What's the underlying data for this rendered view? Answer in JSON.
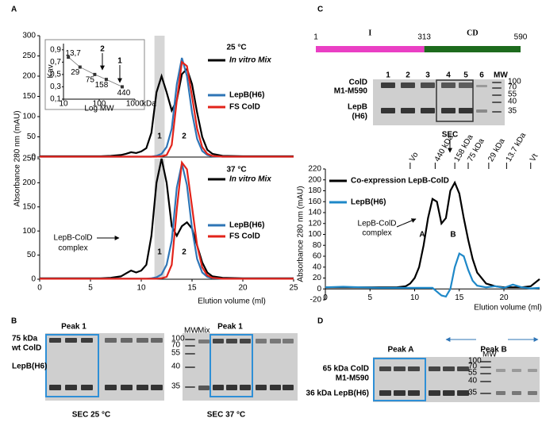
{
  "panels": [
    "A",
    "B",
    "C",
    "D"
  ],
  "chart_data": [
    {
      "type": "line",
      "y_label": "Absorbance 280 nm (mAU)",
      "xlim": [
        0,
        25
      ],
      "ylim": [
        0,
        300
      ],
      "yticks": [
        0,
        50,
        100,
        150,
        200,
        250,
        300
      ],
      "highlight": [
        11.3,
        12.3
      ],
      "annotations": [
        "25 °C",
        "1",
        "2"
      ],
      "x": [
        0,
        2,
        4,
        6,
        7,
        8,
        8.5,
        9,
        9.5,
        10,
        10.5,
        11,
        11.5,
        12,
        12.5,
        13,
        13.5,
        14,
        14.5,
        15,
        15.5,
        16,
        16.5,
        17,
        18,
        20,
        22,
        25
      ],
      "series": [
        {
          "name": "In vitro Mix",
          "color": "#000000",
          "values": [
            2,
            2,
            2,
            2,
            3,
            5,
            8,
            12,
            10,
            14,
            22,
            60,
            160,
            200,
            160,
            115,
            140,
            205,
            218,
            180,
            110,
            50,
            18,
            8,
            3,
            2,
            2,
            2
          ]
        },
        {
          "name": "LepB(H6)",
          "color": "#2e75b6",
          "values": [
            1,
            1,
            1,
            1,
            1,
            1,
            1,
            1,
            1,
            1,
            1,
            1,
            3,
            8,
            25,
            70,
            180,
            245,
            200,
            110,
            45,
            15,
            5,
            2,
            1,
            1,
            1,
            1
          ]
        },
        {
          "name": "FS ColD",
          "color": "#e2231a",
          "values": [
            1,
            1,
            1,
            1,
            1,
            1,
            1,
            1,
            1,
            1,
            1,
            1,
            1,
            2,
            5,
            30,
            140,
            235,
            225,
            150,
            70,
            25,
            8,
            3,
            1,
            1,
            1,
            1
          ]
        }
      ]
    },
    {
      "type": "line",
      "x_label": "Elution volume (ml)",
      "xlim": [
        0,
        25
      ],
      "xticks": [
        0,
        5,
        10,
        15,
        20,
        25
      ],
      "ylim": [
        0,
        250
      ],
      "yticks": [
        0,
        50,
        100,
        150,
        200,
        250
      ],
      "highlight": [
        11.3,
        12.3
      ],
      "annotations": [
        "37 °C",
        "LepB-ColD",
        "complex",
        "1",
        "2"
      ],
      "x": [
        0,
        2,
        4,
        6,
        7,
        8,
        8.5,
        9,
        9.5,
        10,
        10.5,
        11,
        11.5,
        12,
        12.5,
        13,
        13.5,
        14,
        14.5,
        15,
        15.5,
        16,
        16.5,
        17,
        18,
        20,
        22,
        25
      ],
      "series": [
        {
          "name": "In vitro Mix",
          "color": "#000000",
          "values": [
            2,
            2,
            2,
            2,
            3,
            6,
            12,
            18,
            14,
            18,
            30,
            90,
            200,
            250,
            200,
            110,
            90,
            110,
            118,
            105,
            70,
            35,
            14,
            6,
            3,
            2,
            2,
            2
          ]
        },
        {
          "name": "LepB(H6)",
          "color": "#2e75b6",
          "values": [
            1,
            1,
            1,
            1,
            1,
            1,
            1,
            1,
            1,
            1,
            1,
            2,
            4,
            10,
            30,
            80,
            190,
            240,
            195,
            105,
            42,
            14,
            5,
            2,
            1,
            1,
            1,
            1
          ]
        },
        {
          "name": "FS ColD",
          "color": "#e2231a",
          "values": [
            1,
            1,
            1,
            1,
            1,
            1,
            1,
            1,
            1,
            1,
            1,
            1,
            1,
            2,
            5,
            30,
            145,
            242,
            228,
            150,
            70,
            25,
            8,
            3,
            1,
            1,
            1,
            1
          ]
        }
      ]
    },
    {
      "type": "scatter",
      "x_label": "Log MW",
      "y_label": "Kav",
      "unit": "kDa",
      "log_x": true,
      "color": "#333333",
      "xlim": [
        10,
        1000
      ],
      "xticks": [
        10,
        100,
        1000
      ],
      "ylim": [
        0.1,
        1.0
      ],
      "yticks": [
        {
          "value": 0.1,
          "label": "0,1"
        },
        {
          "value": 0.3,
          "label": "0,3"
        },
        {
          "value": 0.5,
          "label": "0,5"
        },
        {
          "value": 0.7,
          "label": "0,7"
        },
        {
          "value": 0.9,
          "label": "0,9"
        }
      ],
      "x": [
        13.7,
        29,
        75,
        158,
        440
      ],
      "x_labels": [
        "13,7",
        "29",
        "75",
        "158",
        "440"
      ],
      "values": [
        0.78,
        0.62,
        0.5,
        0.42,
        0.3
      ],
      "annotations": [
        "2",
        "1"
      ]
    },
    {
      "type": "line",
      "x_label": "Elution volume (ml)",
      "y_label": "Absorbance 280 nm (mAU)",
      "xlim": [
        0,
        24
      ],
      "xticks": [
        0,
        5,
        10,
        15,
        20
      ],
      "ylim": [
        -20,
        220
      ],
      "yticks": [
        -20,
        0,
        20,
        40,
        60,
        80,
        100,
        120,
        140,
        160,
        180,
        200,
        220
      ],
      "annotations": [
        "LepB-ColD",
        "complex",
        "A",
        "B"
      ],
      "markers": [
        {
          "label": "Vo",
          "x": 9.5
        },
        {
          "label": "440 kDa",
          "x": 12.3
        },
        {
          "label": "158 kDa",
          "x": 14.5
        },
        {
          "label": "75 kDa",
          "x": 16
        },
        {
          "label": "29 kDa",
          "x": 18.3
        },
        {
          "label": "13.7 kDa",
          "x": 20.3
        },
        {
          "label": "Vt",
          "x": 23
        }
      ],
      "x": [
        0,
        2,
        4,
        6,
        8,
        9,
        9.5,
        10,
        10.5,
        11,
        11.5,
        12,
        12.5,
        13,
        13.5,
        14,
        14.5,
        15,
        15.5,
        16,
        16.5,
        17,
        18,
        19,
        20,
        21,
        22,
        23,
        24
      ],
      "series": [
        {
          "name": "Co-expression LepB-ColD",
          "color": "#000000",
          "values": [
            3,
            3,
            3,
            3,
            3,
            5,
            10,
            20,
            40,
            80,
            130,
            165,
            160,
            120,
            130,
            180,
            195,
            175,
            130,
            90,
            55,
            30,
            10,
            5,
            3,
            3,
            3,
            5,
            18
          ]
        },
        {
          "name": "LepB(H6)",
          "color": "#1e88c8",
          "values": [
            3,
            4,
            3,
            2,
            2,
            2,
            2,
            2,
            2,
            2,
            2,
            2,
            -5,
            -12,
            -14,
            0,
            40,
            65,
            60,
            35,
            15,
            6,
            3,
            5,
            2,
            8,
            3,
            1,
            2
          ]
        }
      ]
    }
  ],
  "domain_map": {
    "positions": [
      1,
      313,
      590
    ],
    "domains": [
      {
        "label": "I",
        "color": "#ea3fc4",
        "label_color": "#d32020"
      },
      {
        "label": "CD",
        "color": "#1d6b1d",
        "label_color": "#22a022"
      }
    ]
  },
  "gel_b": {
    "labels": [
      "75 kDa",
      "wt ColD",
      "LepB(H6)"
    ],
    "peaks": [
      "Peak 1",
      "Peak 1"
    ],
    "mw": "MW",
    "mix": "Mix",
    "mw_ticks": [
      "100",
      "70",
      "55",
      "40",
      "35"
    ],
    "captions": [
      "SEC 25 °C",
      "SEC 37 °C"
    ]
  },
  "gel_c": {
    "lanes": [
      "1",
      "2",
      "3",
      "4",
      "5",
      "6"
    ],
    "mw": "MW",
    "labels": [
      "ColD",
      "M1-M590",
      "LepB",
      "(H6)"
    ],
    "mw_ticks": [
      "100",
      "70",
      "55",
      "40",
      "35"
    ],
    "sec": "SEC"
  },
  "gel_d": {
    "peaks": [
      "Peak A",
      "Peak B"
    ],
    "mw": "MW",
    "labels": [
      "65 kDa ColD",
      "M1-M590",
      "36 kDa LepB(H6)"
    ],
    "mw_ticks": [
      "100",
      "70",
      "55",
      "40",
      "35"
    ]
  }
}
